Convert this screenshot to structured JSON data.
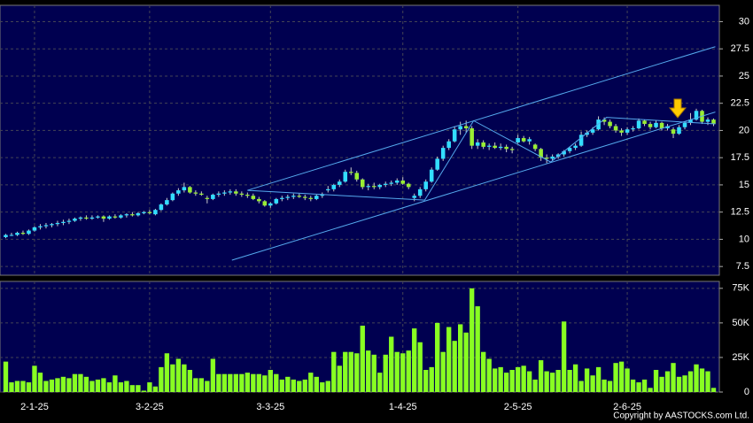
{
  "chart_data": {
    "type": "candlestick",
    "xlim": [
      -1,
      124
    ],
    "xticks": [
      {
        "value": 5,
        "label": "2-1-25"
      },
      {
        "value": 25,
        "label": "3-2-25"
      },
      {
        "value": 46,
        "label": "3-3-25"
      },
      {
        "value": 69,
        "label": "1-4-25"
      },
      {
        "value": 89,
        "label": "2-5-25"
      },
      {
        "value": 108,
        "label": "2-6-25"
      }
    ],
    "ylim": [
      6.7,
      31.5
    ],
    "yticks": [
      7.5,
      10,
      12.5,
      15,
      17.5,
      20,
      22.5,
      25,
      27.5,
      30
    ],
    "grid": true,
    "up_color": "#33ddff",
    "down_color": "#99ee33",
    "volume_color": "#88ff22",
    "line_color": "#55aaee",
    "ohlc": [
      [
        10.2,
        10.5,
        10.1,
        10.4
      ],
      [
        10.4,
        10.6,
        10.3,
        10.4
      ],
      [
        10.4,
        10.7,
        10.3,
        10.6
      ],
      [
        10.6,
        10.8,
        10.4,
        10.5
      ],
      [
        10.5,
        10.9,
        10.4,
        10.8
      ],
      [
        10.8,
        11.2,
        10.7,
        11.1
      ],
      [
        11.1,
        11.4,
        10.9,
        11.2
      ],
      [
        11.2,
        11.5,
        11.0,
        11.3
      ],
      [
        11.3,
        11.5,
        11.1,
        11.4
      ],
      [
        11.4,
        11.7,
        11.2,
        11.5
      ],
      [
        11.5,
        11.8,
        11.3,
        11.6
      ],
      [
        11.6,
        11.9,
        11.4,
        11.7
      ],
      [
        11.7,
        12.0,
        11.6,
        11.9
      ],
      [
        11.9,
        12.1,
        11.7,
        12.0
      ],
      [
        12.0,
        12.2,
        11.8,
        11.9
      ],
      [
        11.9,
        12.2,
        11.8,
        12.0
      ],
      [
        12.0,
        12.2,
        11.9,
        12.1
      ],
      [
        12.1,
        12.2,
        11.6,
        11.9
      ],
      [
        11.9,
        12.2,
        11.8,
        12.1
      ],
      [
        12.1,
        12.3,
        11.9,
        12.0
      ],
      [
        12.0,
        12.3,
        11.9,
        12.2
      ],
      [
        12.2,
        12.4,
        12.0,
        12.3
      ],
      [
        12.3,
        12.5,
        12.1,
        12.2
      ],
      [
        12.2,
        12.5,
        12.1,
        12.4
      ],
      [
        12.4,
        12.6,
        12.3,
        12.5
      ],
      [
        12.5,
        12.7,
        12.3,
        12.4
      ],
      [
        12.3,
        12.8,
        12.2,
        12.7
      ],
      [
        12.7,
        13.3,
        12.6,
        13.2
      ],
      [
        13.2,
        13.8,
        13.1,
        13.6
      ],
      [
        13.6,
        14.3,
        13.5,
        14.2
      ],
      [
        14.2,
        14.7,
        14.0,
        14.5
      ],
      [
        14.5,
        15.2,
        14.3,
        14.8
      ],
      [
        14.8,
        14.9,
        14.2,
        14.3
      ],
      [
        14.3,
        14.5,
        14.0,
        14.2
      ],
      [
        14.2,
        14.4,
        14.0,
        14.1
      ],
      [
        13.8,
        14.0,
        13.3,
        13.7
      ],
      [
        13.7,
        14.2,
        13.6,
        14.1
      ],
      [
        14.1,
        14.4,
        13.9,
        14.2
      ],
      [
        14.2,
        14.5,
        14.0,
        14.3
      ],
      [
        14.3,
        14.6,
        14.1,
        14.4
      ],
      [
        14.4,
        14.6,
        14.0,
        14.2
      ],
      [
        14.2,
        14.4,
        13.9,
        14.1
      ],
      [
        14.1,
        14.3,
        13.8,
        14.0
      ],
      [
        14.0,
        14.2,
        13.6,
        13.7
      ],
      [
        13.7,
        13.9,
        13.3,
        13.5
      ],
      [
        13.5,
        13.6,
        13.0,
        13.1
      ],
      [
        13.1,
        13.4,
        12.9,
        13.3
      ],
      [
        13.3,
        13.8,
        13.2,
        13.7
      ],
      [
        13.7,
        14.0,
        13.5,
        13.8
      ],
      [
        13.8,
        14.1,
        13.6,
        13.9
      ],
      [
        13.9,
        14.2,
        13.7,
        14.0
      ],
      [
        14.0,
        14.2,
        13.8,
        13.9
      ],
      [
        13.9,
        14.1,
        13.6,
        13.8
      ],
      [
        13.8,
        14.0,
        13.5,
        13.7
      ],
      [
        13.7,
        14.1,
        13.6,
        14.0
      ],
      [
        14.0,
        14.3,
        13.8,
        14.1
      ],
      [
        14.5,
        14.9,
        14.3,
        14.6
      ],
      [
        14.6,
        15.1,
        14.4,
        15.0
      ],
      [
        15.0,
        15.5,
        14.8,
        15.3
      ],
      [
        15.3,
        16.4,
        15.2,
        16.2
      ],
      [
        16.2,
        16.6,
        15.9,
        16.1
      ],
      [
        16.1,
        16.3,
        15.3,
        15.5
      ],
      [
        15.5,
        15.6,
        14.6,
        14.8
      ],
      [
        14.8,
        15.1,
        14.5,
        14.9
      ],
      [
        14.9,
        15.2,
        14.6,
        14.8
      ],
      [
        14.8,
        15.1,
        14.6,
        15.0
      ],
      [
        15.0,
        15.3,
        14.8,
        15.1
      ],
      [
        15.1,
        15.4,
        14.9,
        15.2
      ],
      [
        15.2,
        15.6,
        15.0,
        15.4
      ],
      [
        15.4,
        15.7,
        15.0,
        15.1
      ],
      [
        15.1,
        15.2,
        14.6,
        14.8
      ],
      [
        13.8,
        14.2,
        13.5,
        14.0
      ],
      [
        14.0,
        14.8,
        13.8,
        14.6
      ],
      [
        14.6,
        15.5,
        14.4,
        15.3
      ],
      [
        15.3,
        16.6,
        15.2,
        16.4
      ],
      [
        16.4,
        17.6,
        16.3,
        17.4
      ],
      [
        17.4,
        18.6,
        17.2,
        18.4
      ],
      [
        18.4,
        19.2,
        18.2,
        19.0
      ],
      [
        19.0,
        20.4,
        18.9,
        20.1
      ],
      [
        20.1,
        20.8,
        19.6,
        20.4
      ],
      [
        20.4,
        20.9,
        19.8,
        20.2
      ],
      [
        20.2,
        20.4,
        18.3,
        18.6
      ],
      [
        18.6,
        19.2,
        18.3,
        18.9
      ],
      [
        18.9,
        19.1,
        18.3,
        18.5
      ],
      [
        18.5,
        18.8,
        18.2,
        18.6
      ],
      [
        18.6,
        18.9,
        18.3,
        18.4
      ],
      [
        18.4,
        18.8,
        18.2,
        18.5
      ],
      [
        18.5,
        18.7,
        18.0,
        18.3
      ],
      [
        18.3,
        18.5,
        17.9,
        18.2
      ],
      [
        18.9,
        19.6,
        18.8,
        19.3
      ],
      [
        19.3,
        19.5,
        18.9,
        19.0
      ],
      [
        19.0,
        19.4,
        18.7,
        19.2
      ],
      [
        18.7,
        18.8,
        18.1,
        18.3
      ],
      [
        18.3,
        18.4,
        17.2,
        17.5
      ],
      [
        17.5,
        17.8,
        17.0,
        17.4
      ],
      [
        17.4,
        17.8,
        17.2,
        17.6
      ],
      [
        17.6,
        17.9,
        17.4,
        17.8
      ],
      [
        17.8,
        18.2,
        17.6,
        18.1
      ],
      [
        18.1,
        18.5,
        17.9,
        18.4
      ],
      [
        18.4,
        18.8,
        18.2,
        18.6
      ],
      [
        18.6,
        19.9,
        18.5,
        19.6
      ],
      [
        19.6,
        20.0,
        19.4,
        19.8
      ],
      [
        19.8,
        20.3,
        19.6,
        20.1
      ],
      [
        20.1,
        21.3,
        20.0,
        21.0
      ],
      [
        21.0,
        21.2,
        20.5,
        20.8
      ],
      [
        20.8,
        21.0,
        20.2,
        20.4
      ],
      [
        20.4,
        20.6,
        19.8,
        20.0
      ],
      [
        20.0,
        20.2,
        19.5,
        19.8
      ],
      [
        19.8,
        20.3,
        19.6,
        20.1
      ],
      [
        20.1,
        20.4,
        19.9,
        20.2
      ],
      [
        20.2,
        21.1,
        20.1,
        20.9
      ],
      [
        20.9,
        21.0,
        20.4,
        20.6
      ],
      [
        20.6,
        20.8,
        20.1,
        20.3
      ],
      [
        20.3,
        20.9,
        20.2,
        20.7
      ],
      [
        20.7,
        20.8,
        20.0,
        20.2
      ],
      [
        20.2,
        20.6,
        20.0,
        20.4
      ],
      [
        20.1,
        20.3,
        19.3,
        19.7
      ],
      [
        19.7,
        20.5,
        19.6,
        20.3
      ],
      [
        20.3,
        20.8,
        20.1,
        20.7
      ],
      [
        20.7,
        21.6,
        20.5,
        21.0
      ],
      [
        21.0,
        22.0,
        20.9,
        21.8
      ],
      [
        21.8,
        21.9,
        20.6,
        20.8
      ],
      [
        20.8,
        21.2,
        20.5,
        21.0
      ],
      [
        21.0,
        21.1,
        20.4,
        20.6
      ]
    ],
    "trendlines": [
      [
        [
          39.3,
          8.08
        ],
        [
          123.3,
          21.69
        ]
      ],
      [
        [
          42,
          14.5
        ],
        [
          123.3,
          27.7
        ]
      ],
      [
        [
          42,
          14.5
        ],
        [
          72.8,
          13.6
        ],
        [
          81.3,
          20.9
        ],
        [
          94.7,
          17.1
        ],
        [
          104.4,
          21.2
        ],
        [
          123.3,
          20.6
        ]
      ]
    ],
    "volume": {
      "ylim": [
        0,
        80
      ],
      "yticks": [
        0,
        {
          "value": 25,
          "label": "25K"
        },
        {
          "value": 50,
          "label": "50K"
        },
        {
          "value": 75,
          "label": "75K"
        }
      ],
      "values": [
        22,
        7,
        8,
        8,
        7,
        19,
        14,
        8,
        9,
        10,
        11,
        10,
        13,
        13,
        11,
        8,
        9,
        10,
        7,
        12,
        7,
        8,
        5,
        5,
        1,
        7,
        4,
        18,
        28,
        20,
        24,
        20,
        16,
        10,
        10,
        8,
        24,
        13,
        13,
        13,
        13,
        13,
        14,
        13,
        13,
        12,
        16,
        13,
        9,
        11,
        9,
        8,
        9,
        14,
        11,
        7,
        8,
        29,
        19,
        29,
        29,
        28,
        48,
        30,
        27,
        14,
        27,
        40,
        29,
        28,
        30,
        46,
        36,
        16,
        18,
        50,
        29,
        47,
        37,
        49,
        43,
        75,
        62,
        29,
        24,
        17,
        18,
        14,
        16,
        18,
        19,
        15,
        9,
        23,
        15,
        14,
        16,
        51,
        16,
        20,
        8,
        17,
        12,
        18,
        9,
        8,
        21,
        22,
        17,
        9,
        7,
        9,
        3,
        16,
        11,
        15,
        21,
        11,
        12,
        15,
        20,
        17,
        15,
        3
      ]
    },
    "footer": "Copyright by AASTOCKS.com Ltd."
  }
}
